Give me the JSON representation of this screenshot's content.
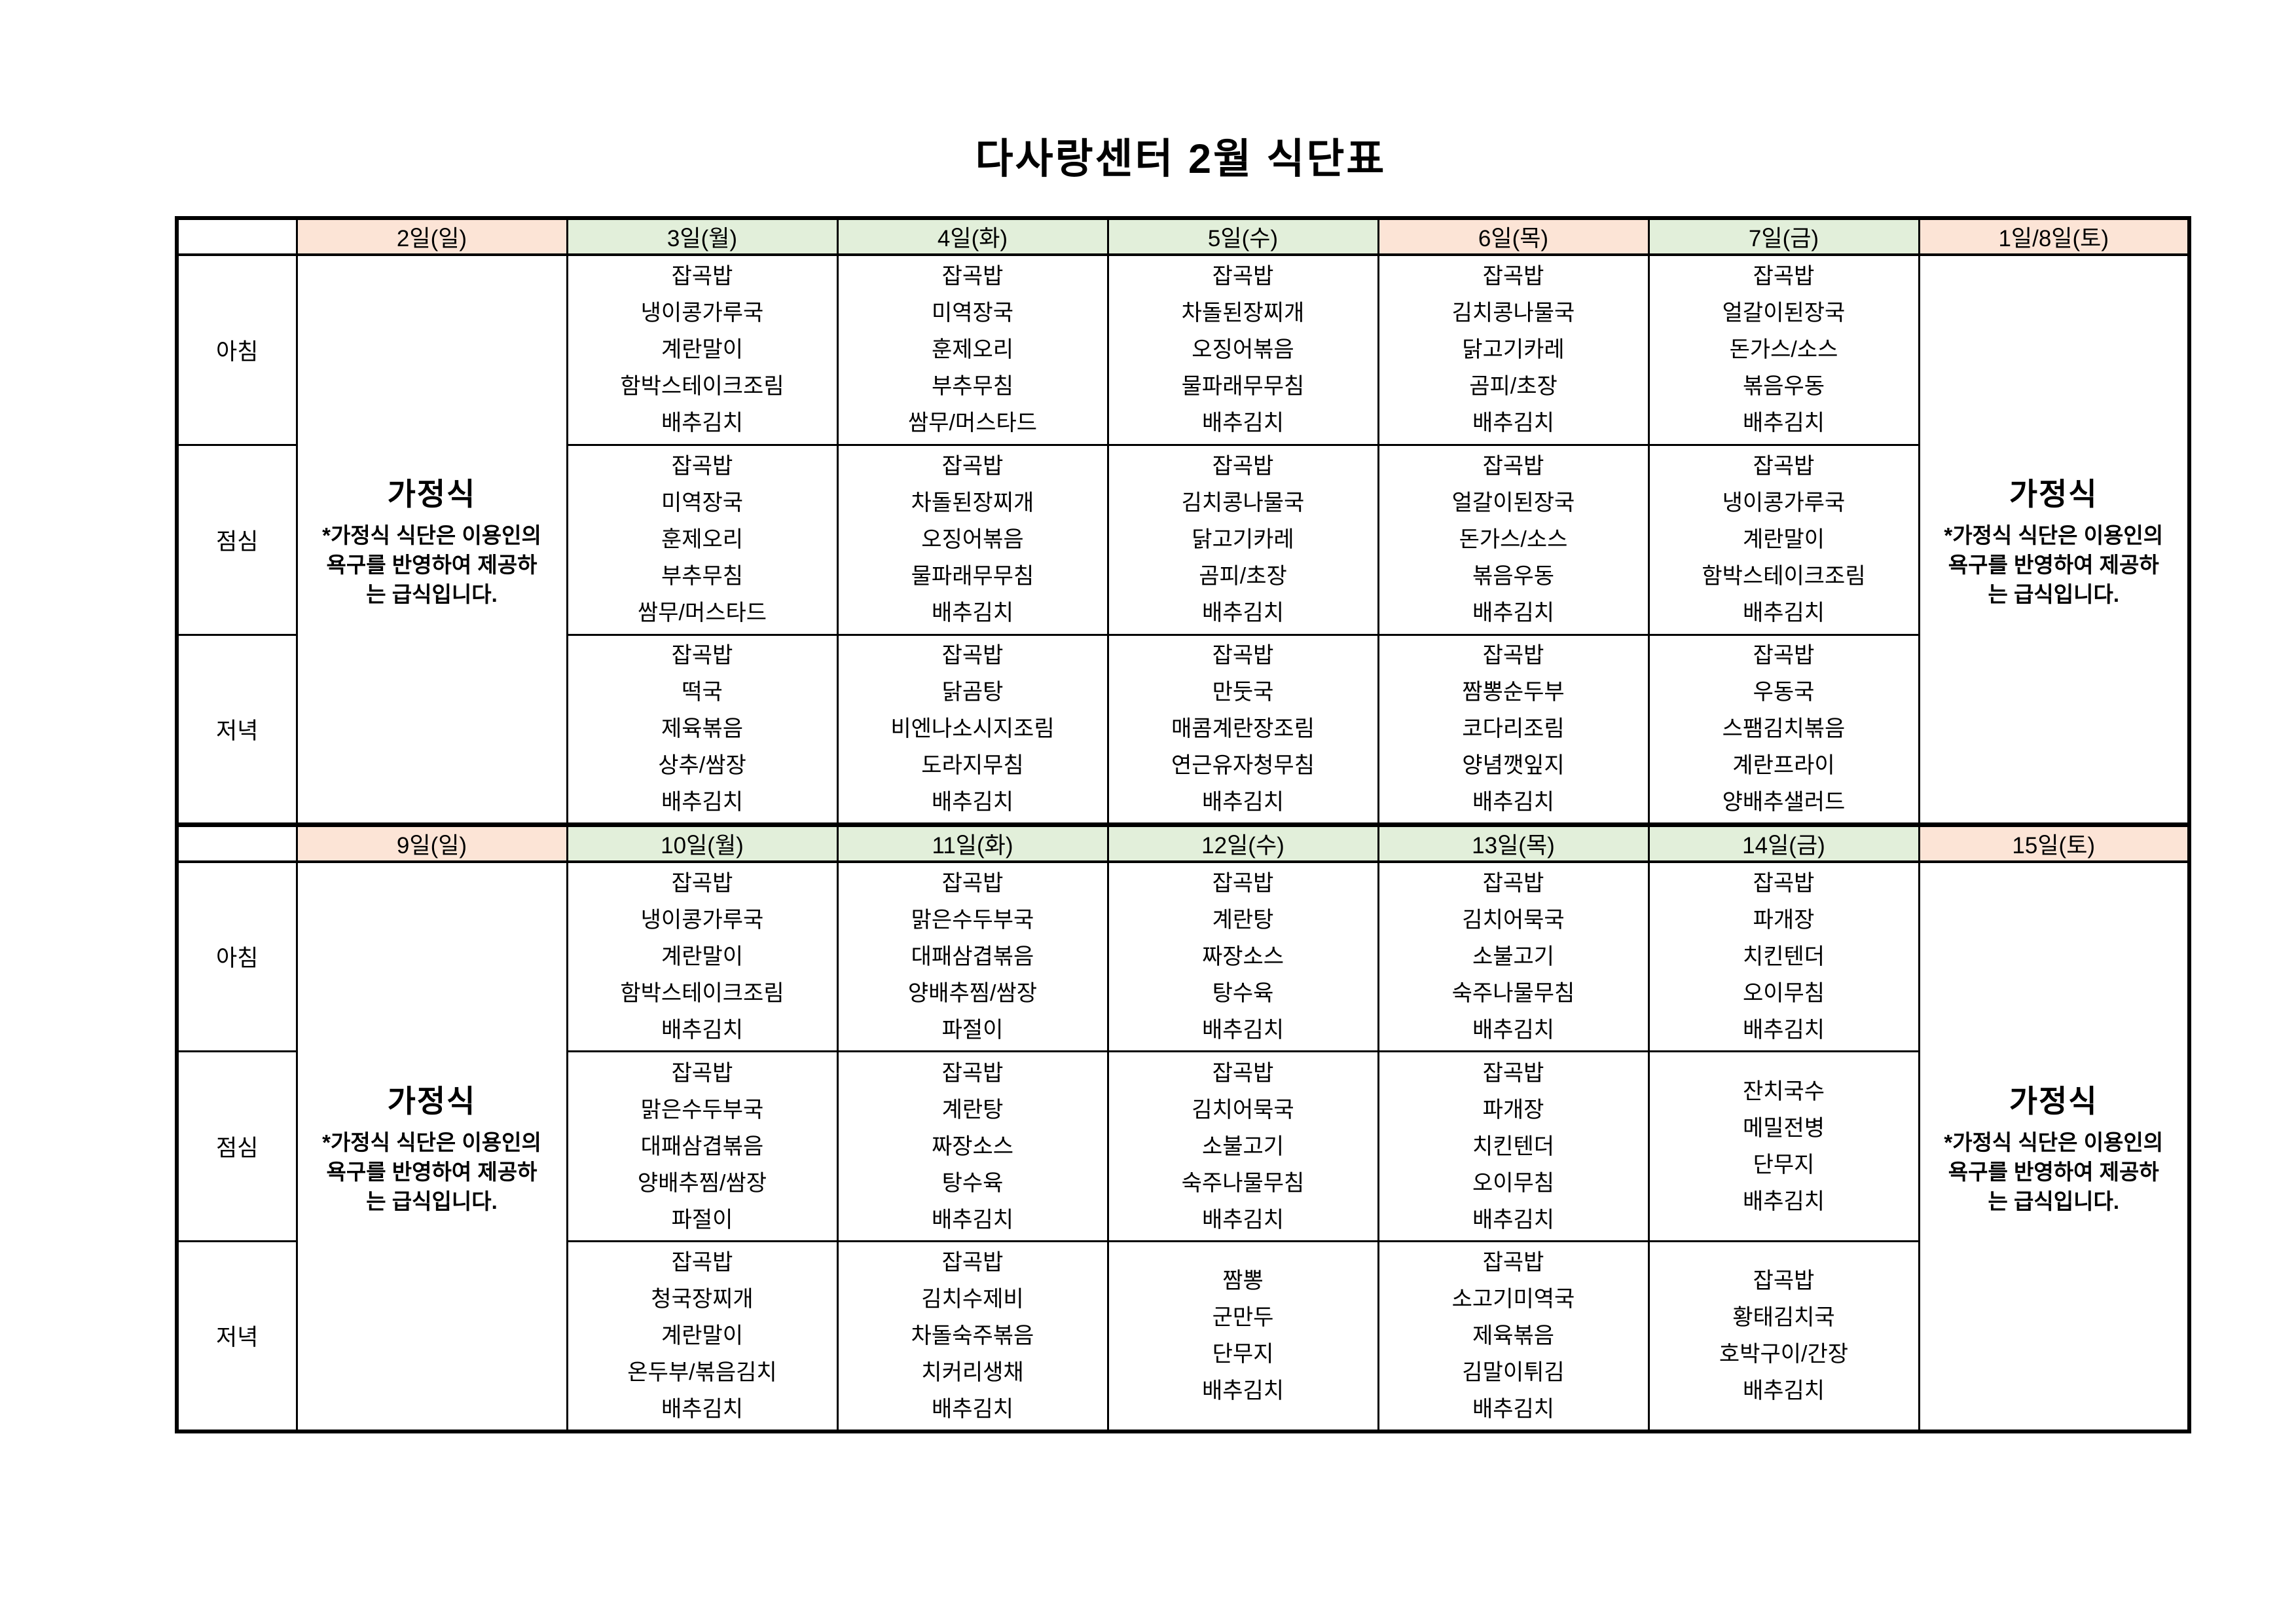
{
  "title": "다사랑센터 2월 식단표",
  "colors": {
    "holiday_header": "#FCE4D6",
    "weekday_header": "#E2EFDA",
    "border": "#000000",
    "background": "#FFFFFF"
  },
  "row_labels": {
    "breakfast": "아침",
    "lunch": "점심",
    "dinner": "저녁"
  },
  "gajeongsik": {
    "title": "가정식",
    "note_lines": [
      "*가정식 식단은 이용인의",
      "욕구를 반영하여 제공하",
      "는 급식입니다."
    ]
  },
  "week1": {
    "days": [
      {
        "label": "2일(일)",
        "style": "holiday",
        "type": "gajeongsik"
      },
      {
        "label": "3일(월)",
        "style": "weekday",
        "breakfast": [
          "잡곡밥",
          "냉이콩가루국",
          "계란말이",
          "함박스테이크조림",
          "배추김치"
        ],
        "lunch": [
          "잡곡밥",
          "미역장국",
          "훈제오리",
          "부추무침",
          "쌈무/머스타드"
        ],
        "dinner": [
          "잡곡밥",
          "떡국",
          "제육볶음",
          "상추/쌈장",
          "배추김치"
        ]
      },
      {
        "label": "4일(화)",
        "style": "weekday",
        "breakfast": [
          "잡곡밥",
          "미역장국",
          "훈제오리",
          "부추무침",
          "쌈무/머스타드"
        ],
        "lunch": [
          "잡곡밥",
          "차돌된장찌개",
          "오징어볶음",
          "물파래무무침",
          "배추김치"
        ],
        "dinner": [
          "잡곡밥",
          "닭곰탕",
          "비엔나소시지조림",
          "도라지무침",
          "배추김치"
        ]
      },
      {
        "label": "5일(수)",
        "style": "weekday",
        "breakfast": [
          "잡곡밥",
          "차돌된장찌개",
          "오징어볶음",
          "물파래무무침",
          "배추김치"
        ],
        "lunch": [
          "잡곡밥",
          "김치콩나물국",
          "닭고기카레",
          "곰피/초장",
          "배추김치"
        ],
        "dinner": [
          "잡곡밥",
          "만둣국",
          "매콤계란장조림",
          "연근유자청무침",
          "배추김치"
        ]
      },
      {
        "label": "6일(목)",
        "style": "holiday",
        "breakfast": [
          "잡곡밥",
          "김치콩나물국",
          "닭고기카레",
          "곰피/초장",
          "배추김치"
        ],
        "lunch": [
          "잡곡밥",
          "얼갈이된장국",
          "돈가스/소스",
          "볶음우동",
          "배추김치"
        ],
        "dinner": [
          "잡곡밥",
          "짬뽕순두부",
          "코다리조림",
          "양념깻잎지",
          "배추김치"
        ]
      },
      {
        "label": "7일(금)",
        "style": "weekday",
        "breakfast": [
          "잡곡밥",
          "얼갈이된장국",
          "돈가스/소스",
          "볶음우동",
          "배추김치"
        ],
        "lunch": [
          "잡곡밥",
          "냉이콩가루국",
          "계란말이",
          "함박스테이크조림",
          "배추김치"
        ],
        "dinner": [
          "잡곡밥",
          "우동국",
          "스팸김치볶음",
          "계란프라이",
          "양배추샐러드"
        ]
      },
      {
        "label": "1일/8일(토)",
        "style": "holiday",
        "type": "gajeongsik"
      }
    ]
  },
  "week2": {
    "days": [
      {
        "label": "9일(일)",
        "style": "holiday",
        "type": "gajeongsik"
      },
      {
        "label": "10일(월)",
        "style": "weekday",
        "breakfast": [
          "잡곡밥",
          "냉이콩가루국",
          "계란말이",
          "함박스테이크조림",
          "배추김치"
        ],
        "lunch": [
          "잡곡밥",
          "맑은수두부국",
          "대패삼겹볶음",
          "양배추찜/쌈장",
          "파절이"
        ],
        "dinner": [
          "잡곡밥",
          "청국장찌개",
          "계란말이",
          "온두부/볶음김치",
          "배추김치"
        ]
      },
      {
        "label": "11일(화)",
        "style": "weekday",
        "breakfast": [
          "잡곡밥",
          "맑은수두부국",
          "대패삼겹볶음",
          "양배추찜/쌈장",
          "파절이"
        ],
        "lunch": [
          "잡곡밥",
          "계란탕",
          "짜장소스",
          "탕수육",
          "배추김치"
        ],
        "dinner": [
          "잡곡밥",
          "김치수제비",
          "차돌숙주볶음",
          "치커리생채",
          "배추김치"
        ]
      },
      {
        "label": "12일(수)",
        "style": "weekday",
        "breakfast": [
          "잡곡밥",
          "계란탕",
          "짜장소스",
          "탕수육",
          "배추김치"
        ],
        "lunch": [
          "잡곡밥",
          "김치어묵국",
          "소불고기",
          "숙주나물무침",
          "배추김치"
        ],
        "dinner": [
          "짬뽕",
          "군만두",
          "단무지",
          "배추김치"
        ]
      },
      {
        "label": "13일(목)",
        "style": "weekday",
        "breakfast": [
          "잡곡밥",
          "김치어묵국",
          "소불고기",
          "숙주나물무침",
          "배추김치"
        ],
        "lunch": [
          "잡곡밥",
          "파개장",
          "치킨텐더",
          "오이무침",
          "배추김치"
        ],
        "dinner": [
          "잡곡밥",
          "소고기미역국",
          "제육볶음",
          "김말이튀김",
          "배추김치"
        ]
      },
      {
        "label": "14일(금)",
        "style": "weekday",
        "breakfast": [
          "잡곡밥",
          "파개장",
          "치킨텐더",
          "오이무침",
          "배추김치"
        ],
        "lunch": [
          "잔치국수",
          "메밀전병",
          "단무지",
          "배추김치"
        ],
        "dinner": [
          "잡곡밥",
          "황태김치국",
          "호박구이/간장",
          "배추김치"
        ]
      },
      {
        "label": "15일(토)",
        "style": "holiday",
        "type": "gajeongsik"
      }
    ]
  }
}
